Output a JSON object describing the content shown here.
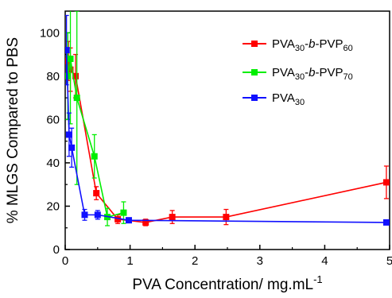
{
  "chart_data": {
    "type": "line",
    "title": "",
    "xlabel": "PVA Concentration/ mg.mL",
    "xlabel_superscript": "-1",
    "ylabel": "% MLGS Compared to PBS",
    "xlim": [
      0,
      5
    ],
    "ylim": [
      0,
      110
    ],
    "xticks": [
      "0",
      "1",
      "2",
      "3",
      "4",
      "5"
    ],
    "yticks": [
      "0",
      "20",
      "40",
      "60",
      "80",
      "100"
    ],
    "grid": false,
    "legend_position": "top-right",
    "series": [
      {
        "name": "PVA30-b-PVP60",
        "name_parts": {
          "base": "PVA",
          "sub1": "30",
          "mid": "-b-",
          "base2": "PVP",
          "sub2": "60"
        },
        "color": "#ff0000",
        "x": [
          0.05,
          0.08,
          0.16,
          0.48,
          0.81,
          1.24,
          1.65,
          2.48,
          4.95
        ],
        "y": [
          87,
          83,
          80,
          26,
          14,
          12.5,
          15,
          15,
          31
        ],
        "err": [
          9,
          10,
          10,
          3,
          2,
          1.5,
          3,
          3.5,
          7.5
        ]
      },
      {
        "name": "PVA30-b-PVP70",
        "name_parts": {
          "base": "PVA",
          "sub1": "30",
          "mid": "-b-",
          "base2": "PVP",
          "sub2": "70"
        },
        "color": "#00ee00",
        "x": [
          0.04,
          0.08,
          0.18,
          0.45,
          0.65,
          0.9
        ],
        "y": [
          80,
          88,
          70,
          43,
          15,
          17
        ],
        "err": [
          20,
          30,
          40,
          10,
          4,
          5
        ]
      },
      {
        "name": "PVA30",
        "name_parts": {
          "base": "PVA",
          "sub1": "30"
        },
        "color": "#1010ff",
        "x": [
          0.02,
          0.06,
          0.1,
          0.3,
          0.5,
          0.98,
          4.95
        ],
        "y": [
          92,
          53,
          47,
          16,
          16,
          13.5,
          12.5
        ],
        "err": [
          16,
          10,
          9,
          2.5,
          2,
          1,
          0.5
        ]
      }
    ]
  }
}
